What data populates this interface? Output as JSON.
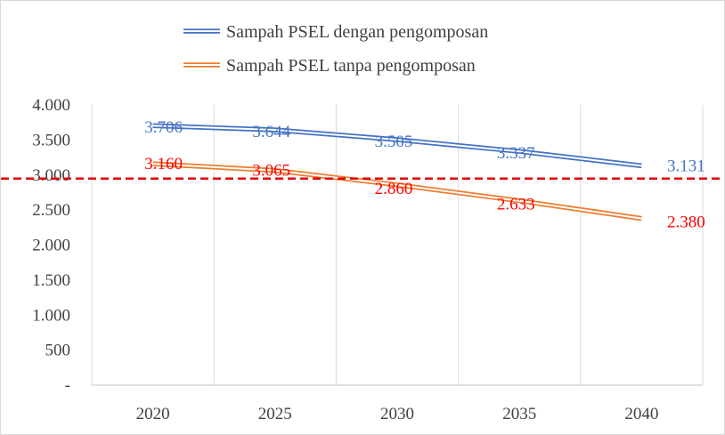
{
  "chart_data": {
    "type": "line",
    "title": "",
    "xlabel": "",
    "ylabel": "",
    "categories": [
      "2020",
      "2025",
      "2030",
      "2035",
      "2040"
    ],
    "ylim": [
      0,
      4000
    ],
    "y_ticks": [
      {
        "value": 4000,
        "label": "4.000"
      },
      {
        "value": 3500,
        "label": "3.500"
      },
      {
        "value": 3000,
        "label": "3.000"
      },
      {
        "value": 2500,
        "label": "2.500"
      },
      {
        "value": 2000,
        "label": "2.000"
      },
      {
        "value": 1500,
        "label": "1.500"
      },
      {
        "value": 1000,
        "label": "1.000"
      },
      {
        "value": 500,
        "label": "500"
      },
      {
        "value": 0,
        "label": "-"
      }
    ],
    "grid": "vertical",
    "legend_position": "top-center",
    "series": [
      {
        "name": "Sampah PSEL dengan pengomposan",
        "values": [
          3706,
          3644,
          3505,
          3337,
          3131
        ],
        "labels": [
          "3.706",
          "3.644",
          "3.505",
          "3.337",
          "3.131"
        ],
        "color": "#4472c4",
        "label_color": "#4472c4",
        "line_style": "double"
      },
      {
        "name": "Sampah PSEL tanpa pengomposan",
        "values": [
          3160,
          3065,
          2860,
          2633,
          2380
        ],
        "labels": [
          "3.160",
          "3.065",
          "2.860",
          "2.633",
          "2.380"
        ],
        "color": "#ed7d31",
        "label_color": "#ff0000",
        "line_style": "double"
      }
    ],
    "reference_line": {
      "value": 2950,
      "color": "#e00000",
      "style": "dashed"
    }
  }
}
